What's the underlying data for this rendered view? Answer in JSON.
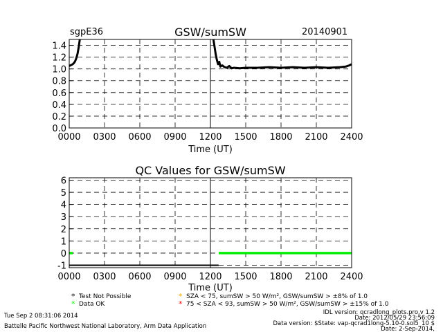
{
  "header": {
    "station": "sgpE36",
    "date": "20140901"
  },
  "legend": {
    "items": [
      {
        "symbol": "*",
        "color": "#000000",
        "label": "Test Not Possible"
      },
      {
        "symbol": "*",
        "color": "#00ee00",
        "label": "Data OK"
      },
      {
        "symbol": "*",
        "color": "#ffa500",
        "label": "SZA < 75, sumSW > 50 W/m², GSW/sumSW > ±8% of 1.0"
      },
      {
        "symbol": "*",
        "color": "#ff0000",
        "label": "75 < SZA < 93, sumSW > 50 W/m², GSW/sumSW > ±15% of 1.0"
      }
    ]
  },
  "footer": {
    "timestamp": "Tue Sep  2 08:31:06 2014",
    "org": "Battelle Pacific Northwest National Laboratory, Arm Data Application",
    "idl_version": "IDL version: qcradlong_plots.pro,v 1.2",
    "code_date": "Date: 2012/05/29 23:56:09",
    "data_version": "Data version: $State: vap-qcrad1long-5.10-0.sol5_10 $",
    "data_date": "Date: 2-Sep-2014,"
  },
  "chart_data": [
    {
      "type": "scatter",
      "title": "GSW/sumSW",
      "xlabel": "Time (UT)",
      "ylabel": "",
      "xlim": [
        0,
        2400
      ],
      "ylim": [
        0,
        1.5
      ],
      "x_ticks": [
        "0000",
        "0300",
        "0600",
        "0900",
        "1200",
        "1500",
        "1800",
        "2100",
        "2400"
      ],
      "x_tick_values": [
        0,
        300,
        600,
        900,
        1200,
        1500,
        1800,
        2100,
        2400
      ],
      "y_ticks": [
        "0.0",
        "0.2",
        "0.4",
        "0.6",
        "0.8",
        "1.0",
        "1.2",
        "1.4"
      ],
      "y_tick_values": [
        0.0,
        0.2,
        0.4,
        0.6,
        0.8,
        1.0,
        1.2,
        1.4
      ],
      "grid": true,
      "series": [
        {
          "color": "#000000",
          "segments": [
            {
              "x": [
                0,
                10,
                20,
                30,
                40,
                50,
                60,
                70,
                80,
                90
              ],
              "y": [
                1.05,
                1.06,
                1.07,
                1.08,
                1.1,
                1.13,
                1.18,
                1.25,
                1.36,
                1.5
              ]
            },
            {
              "x": [
                1225,
                1235,
                1245,
                1255,
                1265,
                1275,
                1285,
                1300,
                1320,
                1340,
                1360,
                1380,
                1400,
                1450,
                1500,
                1600,
                1700,
                1800,
                1900,
                2000,
                2100,
                2200,
                2300,
                2350,
                2380,
                2400
              ],
              "y": [
                1.5,
                1.38,
                1.25,
                1.15,
                1.08,
                1.12,
                1.04,
                1.06,
                1.03,
                1.02,
                1.05,
                1.01,
                1.02,
                1.01,
                1.02,
                1.02,
                1.03,
                1.02,
                1.03,
                1.02,
                1.03,
                1.02,
                1.03,
                1.04,
                1.06,
                1.08
              ]
            }
          ]
        }
      ]
    },
    {
      "type": "scatter",
      "title": "QC Values for GSW/sumSW",
      "xlabel": "Time (UT)",
      "ylabel": "",
      "xlim": [
        0,
        2400
      ],
      "ylim": [
        -1.2,
        6.2
      ],
      "x_ticks": [
        "0000",
        "0300",
        "0600",
        "0900",
        "1200",
        "1500",
        "1800",
        "2100",
        "2400"
      ],
      "x_tick_values": [
        0,
        300,
        600,
        900,
        1200,
        1500,
        1800,
        2100,
        2400
      ],
      "y_ticks": [
        "-1",
        "0",
        "1",
        "2",
        "3",
        "4",
        "5",
        "6"
      ],
      "y_tick_values": [
        -1,
        0,
        1,
        2,
        3,
        4,
        5,
        6
      ],
      "grid": true,
      "series": [
        {
          "color": "#000000",
          "segments": [
            {
              "x": [
                0,
                1270
              ],
              "y": [
                -1,
                -1
              ]
            }
          ]
        },
        {
          "color": "#00ee00",
          "segments": [
            {
              "x": [
                0,
                30
              ],
              "y": [
                0,
                0
              ]
            }
          ]
        },
        {
          "color": "#00ee00",
          "segments": [
            {
              "x": [
                1270,
                2400
              ],
              "y": [
                0,
                0
              ]
            }
          ]
        }
      ]
    }
  ]
}
